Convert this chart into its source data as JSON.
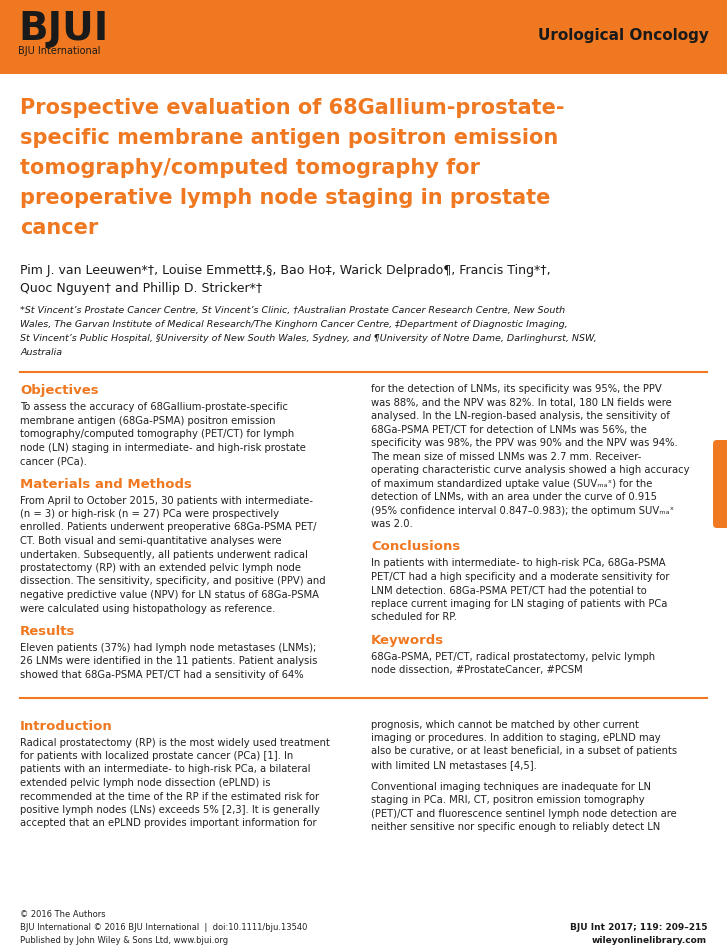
{
  "header_bg_color": "#F07820",
  "dark_text": "#1a1a1a",
  "page_bg_color": "#ffffff",
  "orange_color": "#F07820",
  "body_text_color": "#222222",
  "header_right": "Urological Oncology",
  "article_title_lines": [
    "Prospective evaluation of 68Gallium-prostate-",
    "specific membrane antigen positron emission",
    "tomography/computed tomography for",
    "preoperative lymph node staging in prostate",
    "cancer"
  ],
  "authors_line1": "Pim J. van Leeuwen*†, Louise Emmett‡,§, Bao Ho‡, Warick Delprado¶, Francis Ting*†,",
  "authors_line2": "Quoc Nguyen† and Phillip D. Stricker*†",
  "aff_lines": [
    "*St Vincent’s Prostate Cancer Centre, St Vincent’s Clinic, †Australian Prostate Cancer Research Centre, New South",
    "Wales, The Garvan Institute of Medical Research/The Kinghorn Cancer Centre, ‡Department of Diagnostic Imaging,",
    "St Vincent’s Public Hospital, §University of New South Wales, Sydney, and ¶University of Notre Dame, Darlinghurst, NSW,",
    "Australia"
  ],
  "objectives_title": "Objectives",
  "objectives_lines": [
    "To assess the accuracy of 68Gallium-prostate-specific",
    "membrane antigen (68Ga-PSMA) positron emission",
    "tomography/computed tomography (PET/CT) for lymph",
    "node (LN) staging in intermediate- and high-risk prostate",
    "cancer (PCa)."
  ],
  "methods_title": "Materials and Methods",
  "methods_lines": [
    "From April to October 2015, 30 patients with intermediate-",
    "(n = 3) or high-risk (n = 27) PCa were prospectively",
    "enrolled. Patients underwent preoperative 68Ga-PSMA PET/",
    "CT. Both visual and semi-quantitative analyses were",
    "undertaken. Subsequently, all patients underwent radical",
    "prostatectomy (RP) with an extended pelvic lymph node",
    "dissection. The sensitivity, specificity, and positive (PPV) and",
    "negative predictive value (NPV) for LN status of 68Ga-PSMA",
    "were calculated using histopathology as reference."
  ],
  "results_title": "Results",
  "results_lines": [
    "Eleven patients (37%) had lymph node metastases (LNMs);",
    "26 LNMs were identified in the 11 patients. Patient analysis",
    "showed that 68Ga-PSMA PET/CT had a sensitivity of 64%"
  ],
  "right_abstract_lines": [
    "for the detection of LNMs, its specificity was 95%, the PPV",
    "was 88%, and the NPV was 82%. In total, 180 LN fields were",
    "analysed. In the LN-region-based analysis, the sensitivity of",
    "68Ga-PSMA PET/CT for detection of LNMs was 56%, the",
    "specificity was 98%, the PPV was 90% and the NPV was 94%.",
    "The mean size of missed LNMs was 2.7 mm. Receiver-",
    "operating characteristic curve analysis showed a high accuracy",
    "of maximum standardized uptake value (SUVₘₐˣ) for the",
    "detection of LNMs, with an area under the curve of 0.915",
    "(95% confidence interval 0.847–0.983); the optimum SUVₘₐˣ",
    "was 2.0."
  ],
  "conclusions_title": "Conclusions",
  "conclusions_lines": [
    "In patients with intermediate- to high-risk PCa, 68Ga-PSMA",
    "PET/CT had a high specificity and a moderate sensitivity for",
    "LNM detection. 68Ga-PSMA PET/CT had the potential to",
    "replace current imaging for LN staging of patients with PCa",
    "scheduled for RP."
  ],
  "keywords_title": "Keywords",
  "keywords_lines": [
    "68Ga-PSMA, PET/CT, radical prostatectomy, pelvic lymph",
    "node dissection, #ProstateCancer, #PCSM"
  ],
  "intro_title": "Introduction",
  "intro_left_lines": [
    "Radical prostatectomy (RP) is the most widely used treatment",
    "for patients with localized prostate cancer (PCa) [1]. In",
    "patients with an intermediate- to high-risk PCa, a bilateral",
    "extended pelvic lymph node dissection (ePLND) is",
    "recommended at the time of the RP if the estimated risk for",
    "positive lymph nodes (LNs) exceeds 5% [2,3]. It is generally",
    "accepted that an ePLND provides important information for"
  ],
  "intro_right_lines": [
    "prognosis, which cannot be matched by other current",
    "imaging or procedures. In addition to staging, ePLND may",
    "also be curative, or at least beneficial, in a subset of patients",
    "with limited LN metastases [4,5].",
    "",
    "Conventional imaging techniques are inadequate for LN",
    "staging in PCa. MRI, CT, positron emission tomography",
    "(PET)/CT and fluorescence sentinel lymph node detection are",
    "neither sensitive nor specific enough to reliably detect LN"
  ],
  "footer_left_lines": [
    "© 2016 The Authors",
    "BJU International © 2016 BJU International  |  doi:10.1111/bju.13540",
    "Published by John Wiley & Sons Ltd, www.bjui.org"
  ],
  "footer_right_lines": [
    "BJU Int 2017; 119: 209–215",
    "wileyonlinelibrary.com"
  ]
}
